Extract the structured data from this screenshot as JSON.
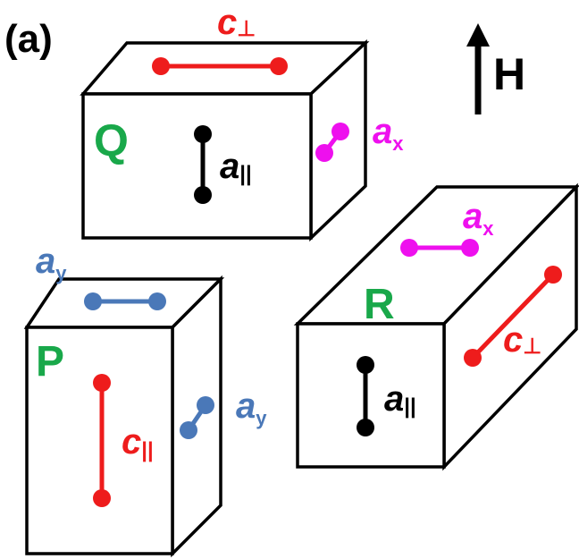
{
  "panel_label": "(a)",
  "field": {
    "label": "H"
  },
  "colors": {
    "green": "#19a84a",
    "red": "#ee1c1c",
    "magenta": "#ee10ee",
    "blue": "#4a78b8",
    "black": "#000000"
  },
  "boxes": {
    "Q": {
      "name": "Q",
      "top_bond": {
        "base": "c",
        "sub": "⊥"
      },
      "front_bond": {
        "base": "a",
        "sub": "||"
      },
      "side_bond": {
        "base": "a",
        "sub": "x"
      }
    },
    "P": {
      "name": "P",
      "top_bond": {
        "base": "a",
        "sub": "y"
      },
      "front_bond": {
        "base": "c",
        "sub": "||"
      },
      "side_bond": {
        "base": "a",
        "sub": "y"
      }
    },
    "R": {
      "name": "R",
      "top_bond": {
        "base": "a",
        "sub": "x"
      },
      "front_bond": {
        "base": "a",
        "sub": "||"
      },
      "side_bond": {
        "base": "c",
        "sub": "⊥"
      }
    }
  }
}
